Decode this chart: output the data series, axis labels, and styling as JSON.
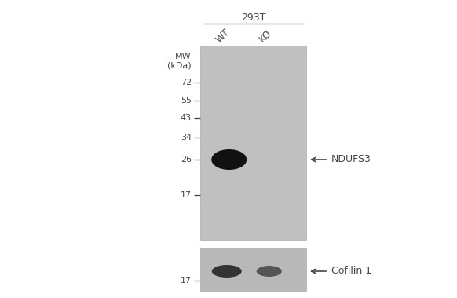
{
  "fig_width": 5.82,
  "fig_height": 3.79,
  "bg_color": "#ffffff",
  "gel_color": "#c0c0c0",
  "gel2_color": "#b8b8b8",
  "text_color": "#444444",
  "tick_color": "#444444",
  "cell_line_label": "293T",
  "lane_labels": [
    "WT",
    "KO"
  ],
  "mw_label_line1": "MW",
  "mw_label_line2": "(kDa)",
  "mw_markers": [
    72,
    55,
    43,
    34,
    26,
    17
  ],
  "arrow1_label": "NDUFS3",
  "arrow2_label": "Cofilin 1",
  "band1_color": "#111111",
  "band2_color": "#333333"
}
